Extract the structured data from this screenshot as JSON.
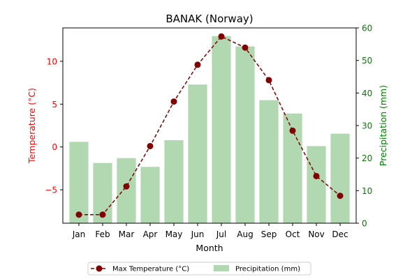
{
  "chart_data": {
    "type": "bar+line",
    "title": "BANAK (Norway)",
    "xlabel": "Month",
    "categories": [
      "Jan",
      "Feb",
      "Mar",
      "Apr",
      "May",
      "Jun",
      "Jul",
      "Aug",
      "Sep",
      "Oct",
      "Nov",
      "Dec"
    ],
    "left_axis": {
      "label": "Temperature (°C)",
      "color": "#ff0000",
      "ylim": [
        -8.9,
        13.9
      ],
      "ticks": [
        -5,
        0,
        5,
        10
      ],
      "tick_labels": [
        "−5",
        "0",
        "5",
        "10"
      ]
    },
    "right_axis": {
      "label": "Precipitation (mm)",
      "color": "#008000",
      "ylim": [
        0,
        60
      ],
      "ticks": [
        0,
        10,
        20,
        30,
        40,
        50,
        60
      ],
      "tick_labels": [
        "0",
        "10",
        "20",
        "30",
        "40",
        "50",
        "60"
      ]
    },
    "series": [
      {
        "name": "Max Temperature (°C)",
        "type": "line",
        "axis": "left",
        "color": "#800000",
        "style": "dashed with circle markers",
        "values": [
          -7.9,
          -7.9,
          -4.6,
          0.1,
          5.3,
          9.6,
          12.9,
          11.6,
          7.8,
          1.9,
          -3.4,
          -5.7
        ]
      },
      {
        "name": "Precipitation (mm)",
        "type": "bar",
        "axis": "right",
        "color": "#b2d8b2",
        "values": [
          25,
          18.5,
          20,
          17.3,
          25.5,
          42.6,
          57.5,
          54.3,
          37.8,
          33.7,
          23.7,
          27.5
        ]
      }
    ],
    "legend": {
      "placement": "bottom-center",
      "columns": 2
    },
    "grid": false
  }
}
